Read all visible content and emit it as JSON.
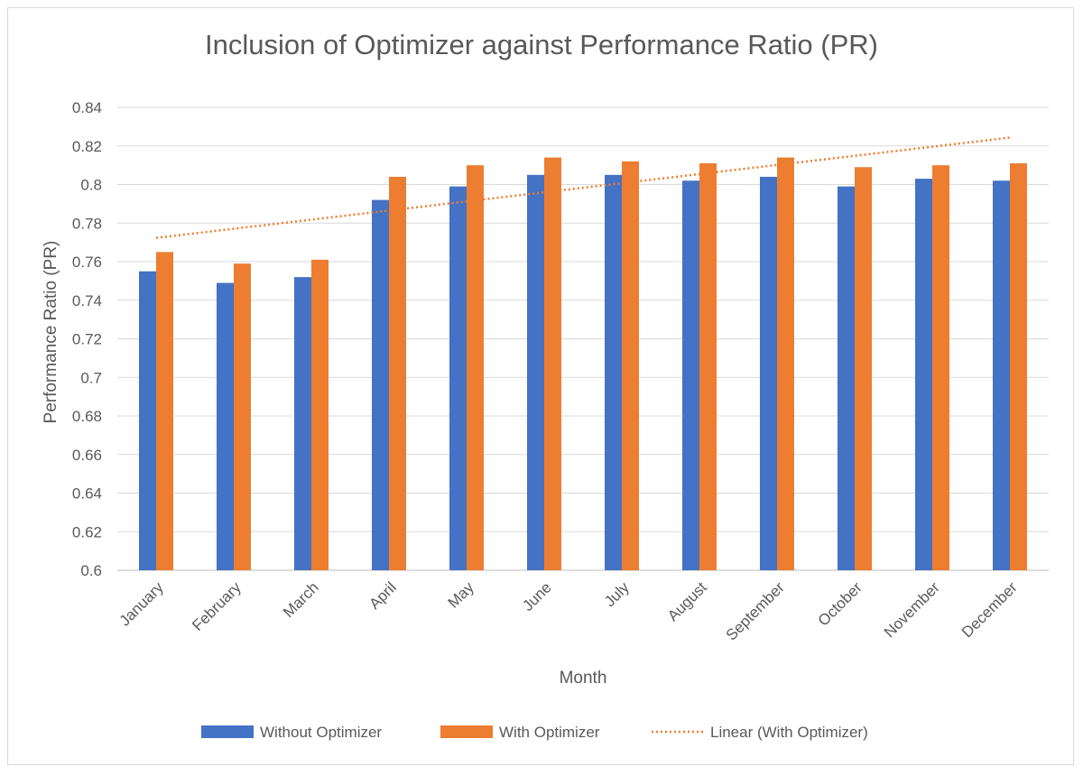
{
  "chart_data": {
    "type": "bar",
    "title": "Inclusion of Optimizer against Performance Ratio (PR)",
    "xlabel": "Month",
    "ylabel": "Performance Ratio (PR)",
    "ylim": [
      0.6,
      0.84
    ],
    "ytick_step": 0.02,
    "yticks": [
      "0.6",
      "0.62",
      "0.64",
      "0.66",
      "0.68",
      "0.7",
      "0.72",
      "0.74",
      "0.76",
      "0.78",
      "0.8",
      "0.82",
      "0.84"
    ],
    "grid": true,
    "legend_position": "bottom",
    "categories": [
      "January",
      "February",
      "March",
      "April",
      "May",
      "June",
      "July",
      "August",
      "September",
      "October",
      "November",
      "December"
    ],
    "series": [
      {
        "name": "Without Optimizer",
        "color": "#4472C4",
        "values": [
          0.755,
          0.749,
          0.752,
          0.792,
          0.799,
          0.805,
          0.805,
          0.802,
          0.804,
          0.799,
          0.803,
          0.802
        ]
      },
      {
        "name": "With Optimizer",
        "color": "#ED7D31",
        "values": [
          0.765,
          0.759,
          0.761,
          0.804,
          0.81,
          0.814,
          0.812,
          0.811,
          0.814,
          0.809,
          0.81,
          0.811
        ]
      }
    ],
    "trendline": {
      "name": "Linear (With Optimizer)",
      "type": "linear",
      "of_series": "With Optimizer",
      "color": "#ED7D31",
      "style": "dotted"
    }
  }
}
